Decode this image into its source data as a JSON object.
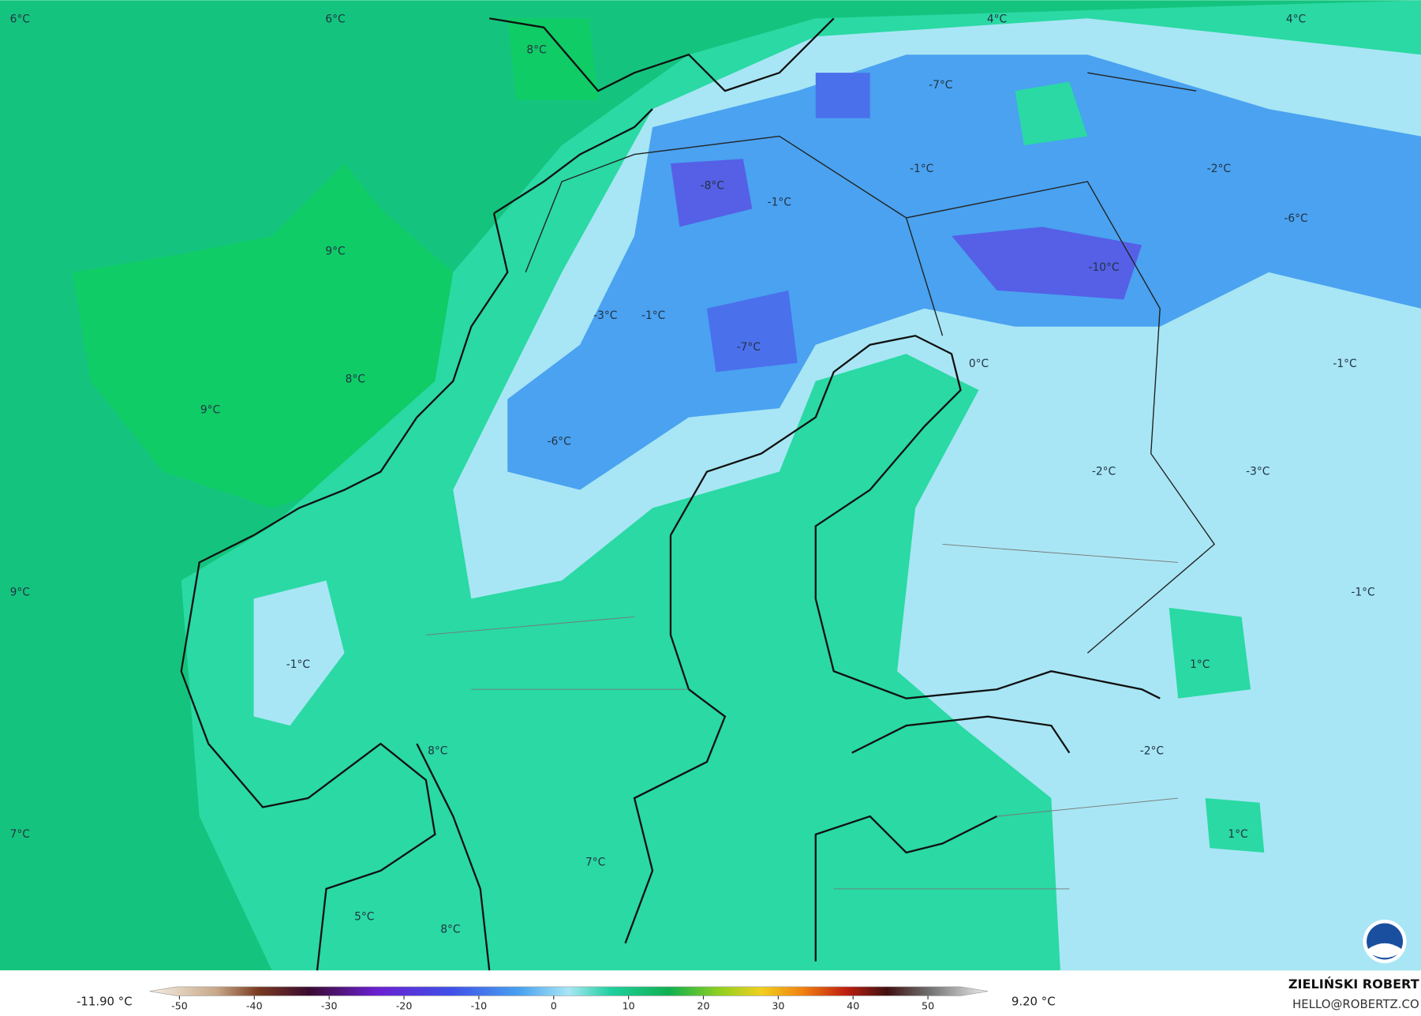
{
  "map": {
    "labels": [
      "6°C",
      "6°C",
      "8°C",
      "4°C",
      "4°C",
      "-7°C",
      "-1°C",
      "-2°C",
      "-8°C",
      "-1°C",
      "-6°C",
      "9°C",
      "-10°C",
      "-3°C",
      "-1°C",
      "-7°C",
      "0°C",
      "-1°C",
      "8°C",
      "9°C",
      "-6°C",
      "-2°C",
      "-3°C",
      "9°C",
      "-1°C",
      "-1°C",
      "1°C",
      "-2°C",
      "8°C",
      "7°C",
      "1°C",
      "7°C",
      "5°C",
      "8°C"
    ]
  },
  "colorbar": {
    "min_label": "-11.90 °C",
    "max_label": "9.20 °C",
    "lim": [
      -54,
      58
    ],
    "ticks": [
      -50,
      -40,
      -30,
      -20,
      -10,
      0,
      10,
      20,
      30,
      40,
      50
    ]
  },
  "credit": {
    "name": "ZIELIŃSKI ROBERT",
    "email": "HELLO@ROBERTZ.CO"
  }
}
